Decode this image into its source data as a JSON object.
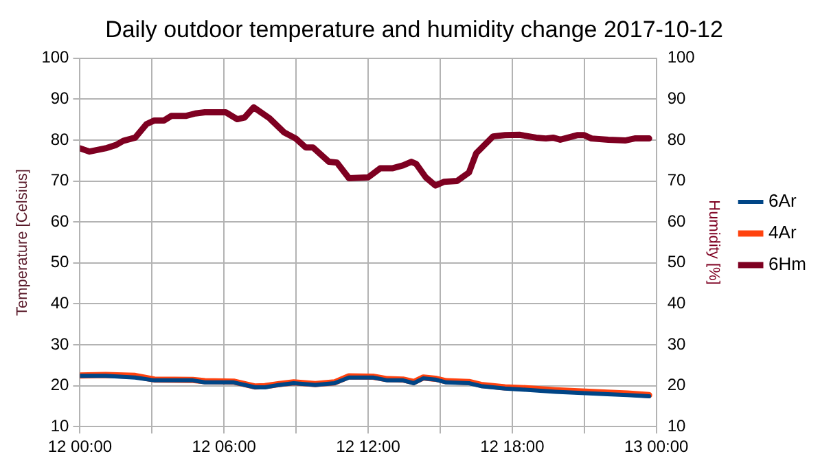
{
  "chart_data": {
    "type": "line",
    "title": "Daily outdoor temperature and humidity change 2017-10-12",
    "ylabel": "Temperature [Celsius]",
    "y2label": "Humidity [%]",
    "xlim": [
      "2017-10-12T00:00",
      "2017-10-13T00:00"
    ],
    "xticks": [
      {
        "value": "2017-10-12T00:00",
        "label": "12 00:00"
      },
      {
        "value": "2017-10-12T03:00",
        "label": null
      },
      {
        "value": "2017-10-12T06:00",
        "label": "12 06:00"
      },
      {
        "value": "2017-10-12T09:00",
        "label": null
      },
      {
        "value": "2017-10-12T12:00",
        "label": "12 12:00"
      },
      {
        "value": "2017-10-12T15:00",
        "label": null
      },
      {
        "value": "2017-10-12T18:00",
        "label": "12 18:00"
      },
      {
        "value": "2017-10-12T21:00",
        "label": null
      },
      {
        "value": "2017-10-13T00:00",
        "label": "13 00:00"
      }
    ],
    "ylim": [
      10,
      100
    ],
    "yticks": [
      10,
      20,
      30,
      40,
      50,
      60,
      70,
      80,
      90,
      100
    ],
    "y2lim": [
      10,
      100
    ],
    "y2ticks": [
      10,
      20,
      30,
      40,
      50,
      60,
      70,
      80,
      90,
      100
    ],
    "grid": true,
    "legend": "right",
    "marker": "none",
    "line_style": "solid",
    "x": [
      "2017-10-12T00:00",
      "2017-10-12T01:04",
      "2017-10-12T02:18",
      "2017-10-12T03:06",
      "2017-10-12T04:42",
      "2017-10-12T05:12",
      "2017-10-12T06:24",
      "2017-10-12T07:18",
      "2017-10-12T07:42",
      "2017-10-12T08:18",
      "2017-10-12T08:54",
      "2017-10-12T09:48",
      "2017-10-12T10:36",
      "2017-10-12T11:12",
      "2017-10-12T12:12",
      "2017-10-12T12:48",
      "2017-10-12T13:27",
      "2017-10-12T13:54",
      "2017-10-12T14:18",
      "2017-10-12T14:48",
      "2017-10-12T15:15",
      "2017-10-12T16:12",
      "2017-10-12T16:42",
      "2017-10-12T17:42",
      "2017-10-12T18:33",
      "2017-10-12T19:48",
      "2017-10-12T20:54",
      "2017-10-12T21:58",
      "2017-10-12T22:48",
      "2017-10-12T23:42"
    ],
    "series": [
      {
        "name": "6Ar",
        "color": "#004586",
        "values": [
          22.4,
          22.4,
          22.0,
          21.3,
          21.3,
          20.8,
          20.8,
          19.6,
          19.6,
          20.2,
          20.6,
          20.2,
          20.6,
          22.0,
          22.0,
          21.3,
          21.3,
          20.6,
          21.8,
          21.5,
          20.8,
          20.6,
          19.9,
          19.3,
          19.0,
          18.5,
          18.2,
          17.9,
          17.7,
          17.4
        ]
      },
      {
        "name": "4Ar",
        "color": "#ff420e",
        "values": [
          22.5,
          22.6,
          22.4,
          21.5,
          21.4,
          21.1,
          21.0,
          19.8,
          19.9,
          20.4,
          20.8,
          20.4,
          20.8,
          22.3,
          22.2,
          21.6,
          21.5,
          20.9,
          22.0,
          21.7,
          21.1,
          20.9,
          20.2,
          19.6,
          19.4,
          18.9,
          18.6,
          18.3,
          18.1,
          17.7
        ]
      },
      {
        "name": "6Hm",
        "color": "#7e0021",
        "axis": "y2",
        "x": [
          "2017-10-12T00:00",
          "2017-10-12T00:24",
          "2017-10-12T01:04",
          "2017-10-12T01:30",
          "2017-10-12T01:48",
          "2017-10-12T02:18",
          "2017-10-12T02:46",
          "2017-10-12T03:06",
          "2017-10-12T03:30",
          "2017-10-12T03:48",
          "2017-10-12T04:24",
          "2017-10-12T04:48",
          "2017-10-12T05:12",
          "2017-10-12T05:36",
          "2017-10-12T06:04",
          "2017-10-12T06:33",
          "2017-10-12T06:51",
          "2017-10-12T07:14",
          "2017-10-12T07:54",
          "2017-10-12T08:30",
          "2017-10-12T08:59",
          "2017-10-12T09:24",
          "2017-10-12T09:42",
          "2017-10-12T10:22",
          "2017-10-12T10:42",
          "2017-10-12T11:12",
          "2017-10-12T12:00",
          "2017-10-12T12:30",
          "2017-10-12T13:00",
          "2017-10-12T13:27",
          "2017-10-12T13:48",
          "2017-10-12T14:00",
          "2017-10-12T14:24",
          "2017-10-12T14:48",
          "2017-10-12T15:09",
          "2017-10-12T15:42",
          "2017-10-12T16:12",
          "2017-10-12T16:30",
          "2017-10-12T17:12",
          "2017-10-12T17:42",
          "2017-10-12T18:18",
          "2017-10-12T19:00",
          "2017-10-12T19:24",
          "2017-10-12T19:42",
          "2017-10-12T20:00",
          "2017-10-12T20:42",
          "2017-10-12T21:00",
          "2017-10-12T21:18",
          "2017-10-12T22:00",
          "2017-10-12T22:42",
          "2017-10-12T23:06",
          "2017-10-12T23:42"
        ],
        "values": [
          78.0,
          77.2,
          78.0,
          78.8,
          79.8,
          80.6,
          83.9,
          84.8,
          84.8,
          85.9,
          85.9,
          86.5,
          86.8,
          86.8,
          86.8,
          85.1,
          85.5,
          88.0,
          85.3,
          81.9,
          80.4,
          78.2,
          78.2,
          74.7,
          74.5,
          70.7,
          70.9,
          73.1,
          73.1,
          73.8,
          74.7,
          74.2,
          70.9,
          68.9,
          69.8,
          70.0,
          72.1,
          76.8,
          80.9,
          81.2,
          81.3,
          80.6,
          80.4,
          80.6,
          80.1,
          81.2,
          81.2,
          80.4,
          80.1,
          79.9,
          80.4,
          80.4
        ]
      }
    ]
  }
}
